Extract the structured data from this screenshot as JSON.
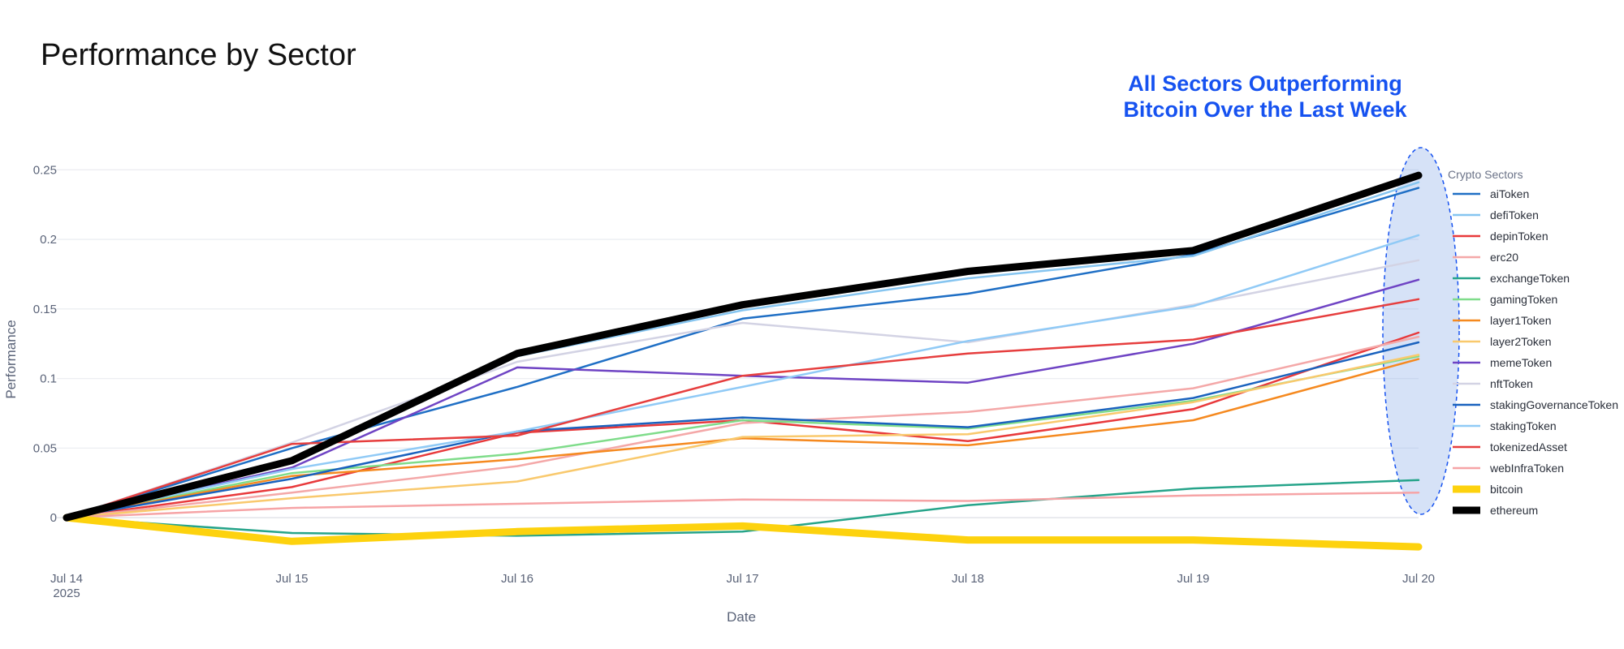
{
  "chart_data": {
    "type": "line",
    "title": "Performance by Sector",
    "annotation": "All Sectors Outperforming Bitcoin Over the Last Week",
    "annotation_lines": [
      "All Sectors Outperforming",
      "Bitcoin Over the Last Week"
    ],
    "xlabel": "Date",
    "ylabel": "Performance",
    "x": [
      "Jul 14",
      "Jul 15",
      "Jul 16",
      "Jul 17",
      "Jul 18",
      "Jul 19",
      "Jul 20"
    ],
    "x_tick_labels": [
      "Jul 14",
      "Jul 15",
      "Jul 16",
      "Jul 17",
      "Jul 18",
      "Jul 19",
      "Jul 20"
    ],
    "x_year_label": "2025",
    "y_ticks": [
      0,
      0.05,
      0.1,
      0.15,
      0.2,
      0.25
    ],
    "y_tick_labels": [
      "0",
      "0.05",
      "0.1",
      "0.15",
      "0.2",
      "0.25"
    ],
    "ylim": [
      -0.032,
      0.27
    ],
    "grid": true,
    "legend_title": "Crypto Sectors",
    "legend_position": "right",
    "highlight": "ellipse around Jul 20 values",
    "series": [
      {
        "name": "aiToken",
        "color": "#1f6fc5",
        "width": 2.5,
        "values": [
          0,
          0.05,
          0.094,
          0.143,
          0.161,
          0.189,
          0.237
        ]
      },
      {
        "name": "defiToken",
        "color": "#86c5f0",
        "width": 2.5,
        "values": [
          0,
          0.04,
          0.116,
          0.149,
          0.172,
          0.188,
          0.241
        ]
      },
      {
        "name": "depinToken",
        "color": "#e8393b",
        "width": 2.5,
        "values": [
          0,
          0.022,
          0.061,
          0.07,
          0.055,
          0.078,
          0.133
        ]
      },
      {
        "name": "erc20",
        "color": "#f4a8a8",
        "width": 2.5,
        "values": [
          0,
          0.018,
          0.037,
          0.068,
          0.076,
          0.093,
          0.13
        ]
      },
      {
        "name": "exchangeToken",
        "color": "#26a48a",
        "width": 2.5,
        "values": [
          0,
          -0.011,
          -0.013,
          -0.01,
          0.009,
          0.021,
          0.027
        ]
      },
      {
        "name": "gamingToken",
        "color": "#7fdc8a",
        "width": 2.5,
        "values": [
          0,
          0.032,
          0.046,
          0.07,
          0.064,
          0.084,
          0.116
        ]
      },
      {
        "name": "layer1Token",
        "color": "#f5891f",
        "width": 2.5,
        "values": [
          0,
          0.03,
          0.042,
          0.057,
          0.052,
          0.07,
          0.114
        ]
      },
      {
        "name": "layer2Token",
        "color": "#f9c96d",
        "width": 2.5,
        "values": [
          0,
          0.014,
          0.026,
          0.058,
          0.06,
          0.083,
          0.117
        ]
      },
      {
        "name": "memeToken",
        "color": "#6f44c4",
        "width": 2.5,
        "values": [
          0,
          0.036,
          0.108,
          0.102,
          0.097,
          0.125,
          0.171
        ]
      },
      {
        "name": "nftToken",
        "color": "#d3d3e4",
        "width": 2.5,
        "values": [
          0,
          0.054,
          0.112,
          0.14,
          0.126,
          0.153,
          0.185
        ]
      },
      {
        "name": "stakingGovernanceToken",
        "color": "#1a62be",
        "width": 2.5,
        "values": [
          0,
          0.028,
          0.062,
          0.072,
          0.065,
          0.086,
          0.126
        ]
      },
      {
        "name": "stakingToken",
        "color": "#90caf6",
        "width": 2.5,
        "values": [
          0,
          0.035,
          0.062,
          0.094,
          0.127,
          0.152,
          0.203
        ]
      },
      {
        "name": "tokenizedAsset",
        "color": "#e63e3e",
        "width": 2.5,
        "values": [
          0,
          0.053,
          0.059,
          0.102,
          0.118,
          0.128,
          0.157
        ]
      },
      {
        "name": "webInfraToken",
        "color": "#f6a4a6",
        "width": 2.5,
        "values": [
          0,
          0.007,
          0.01,
          0.013,
          0.012,
          0.016,
          0.018
        ]
      },
      {
        "name": "bitcoin",
        "color": "#fdd20e",
        "width": 9,
        "values": [
          0,
          -0.017,
          -0.01,
          -0.006,
          -0.016,
          -0.016,
          -0.021
        ]
      },
      {
        "name": "ethereum",
        "color": "#000000",
        "width": 9,
        "values": [
          0,
          0.041,
          0.118,
          0.153,
          0.177,
          0.192,
          0.246
        ]
      }
    ]
  }
}
